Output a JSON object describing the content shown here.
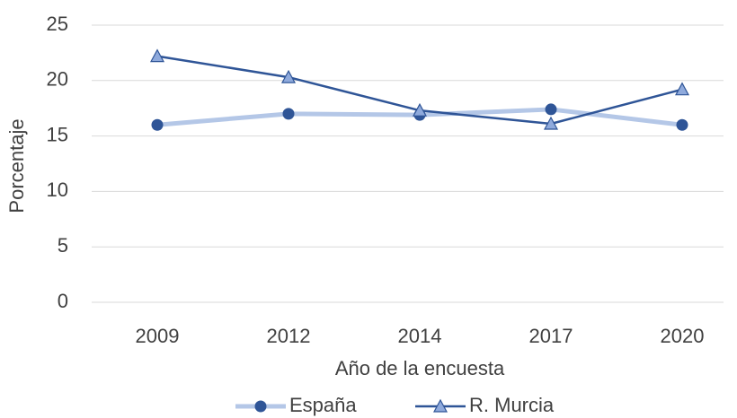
{
  "chart_data": {
    "type": "line",
    "x_label": "Año de la encuesta",
    "y_label": "Porcentaje",
    "categories": [
      "2009",
      "2012",
      "2014",
      "2017",
      "2020"
    ],
    "series": [
      {
        "name": "España",
        "color": "#b4c7e7",
        "marker": "circle",
        "marker_color": "#2f5597",
        "values": [
          16.0,
          17.0,
          16.9,
          17.4,
          16.0
        ]
      },
      {
        "name": "R. Murcia",
        "color": "#2f5597",
        "marker": "triangle",
        "marker_color": "#8faadc",
        "values": [
          22.2,
          20.3,
          17.3,
          16.1,
          19.2
        ]
      }
    ],
    "ylim": [
      0,
      25
    ],
    "yticks": [
      0,
      5,
      10,
      15,
      20,
      25
    ],
    "grid": true,
    "legend": "bottom"
  }
}
